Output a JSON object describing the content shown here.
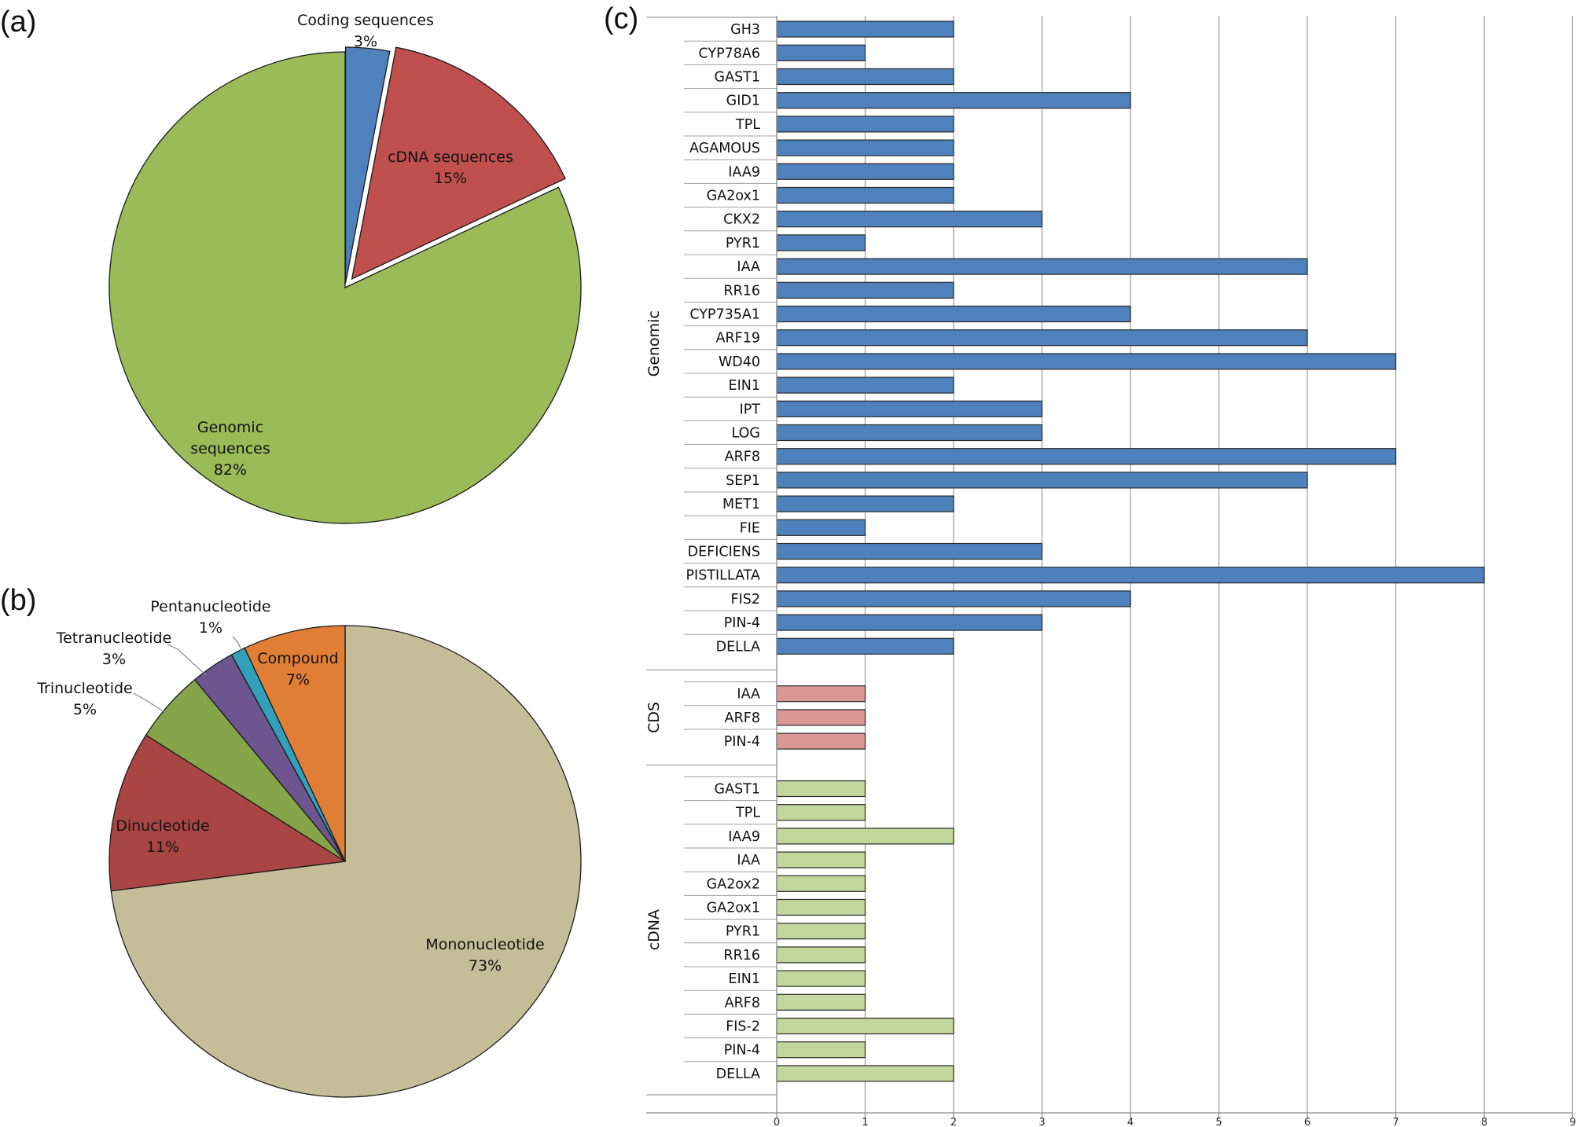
{
  "panels": {
    "a_letter": "(a)",
    "b_letter": "(b)",
    "c_letter": "(c)"
  },
  "chart_data": [
    {
      "type": "pie",
      "title": "",
      "slices": [
        {
          "name": "Coding sequences",
          "label_lines": [
            "Coding sequences",
            "3%"
          ],
          "value": 3,
          "color": "#4f81bd"
        },
        {
          "name": "cDNA sequences",
          "label_lines": [
            "cDNA sequences",
            "15%"
          ],
          "value": 15,
          "color": "#c0504d"
        },
        {
          "name": "Genomic sequences",
          "label_lines": [
            "Genomic",
            "sequences",
            "82%"
          ],
          "value": 82,
          "color": "#9bbb59"
        }
      ]
    },
    {
      "type": "pie",
      "title": "",
      "slices": [
        {
          "name": "Mononucleotide",
          "label_lines": [
            "Mononucleotide",
            "73%"
          ],
          "value": 73,
          "color": "#c4bd97"
        },
        {
          "name": "Dinucleotide",
          "label_lines": [
            "Dinucleotide",
            "11%"
          ],
          "value": 11,
          "color": "#a94643"
        },
        {
          "name": "Trinucleotide",
          "label_lines": [
            "Trinucleotide",
            "5%"
          ],
          "value": 5,
          "color": "#86a44a"
        },
        {
          "name": "Tetranucleotide",
          "label_lines": [
            "Tetranucleotide",
            "3%"
          ],
          "value": 3,
          "color": "#6d558f"
        },
        {
          "name": "Pentanucleotide",
          "label_lines": [
            "Pentanucleotide",
            "1%"
          ],
          "value": 1,
          "color": "#31a0b8"
        },
        {
          "name": "Compound",
          "label_lines": [
            "Compound",
            "7%"
          ],
          "value": 7,
          "color": "#e07e36"
        }
      ]
    },
    {
      "type": "bar",
      "orientation": "horizontal",
      "xlim": [
        0,
        9
      ],
      "xticks": [
        0,
        1,
        2,
        3,
        4,
        5,
        6,
        7,
        8,
        9
      ],
      "grid": true,
      "groups": [
        {
          "name": "Genomic",
          "color": "#4f81bd",
          "categories": [
            "GH3",
            "CYP78A6",
            "GAST1",
            "GID1",
            "TPL",
            "AGAMOUS",
            "IAA9",
            "GA2ox1",
            "CKX2",
            "PYR1",
            "IAA",
            "RR16",
            "CYP735A1",
            "ARF19",
            "WD40",
            "EIN1",
            "IPT",
            "LOG",
            "ARF8",
            "SEP1",
            "MET1",
            "FIE",
            "DEFICIENS",
            "PISTILLATA",
            "FIS2",
            "PIN-4",
            "DELLA"
          ],
          "values": [
            2,
            1,
            2,
            4,
            2,
            2,
            2,
            2,
            3,
            1,
            6,
            2,
            4,
            6,
            7,
            2,
            3,
            3,
            7,
            6,
            2,
            1,
            3,
            8,
            4,
            3,
            2
          ]
        },
        {
          "name": "CDS",
          "color": "#d99694",
          "categories": [
            "IAA",
            "ARF8",
            "PIN-4"
          ],
          "values": [
            1,
            1,
            1
          ]
        },
        {
          "name": "cDNA",
          "color": "#c3d69b",
          "categories": [
            "GAST1",
            "TPL",
            "IAA9",
            "IAA",
            "GA2ox2",
            "GA2ox1",
            "PYR1",
            "RR16",
            "EIN1",
            "ARF8",
            "FIS-2",
            "PIN-4",
            "DELLA"
          ],
          "values": [
            1,
            1,
            2,
            1,
            1,
            1,
            1,
            1,
            1,
            1,
            2,
            1,
            2
          ]
        }
      ]
    }
  ]
}
